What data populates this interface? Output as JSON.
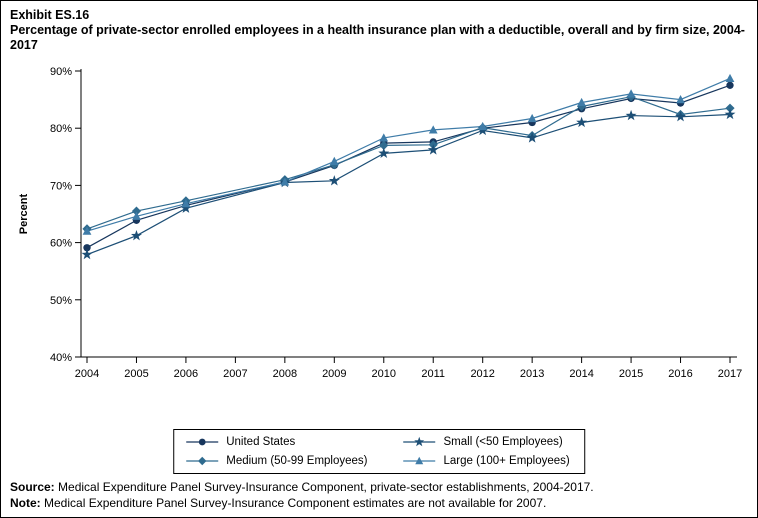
{
  "header": {
    "exhibit": "Exhibit ES.16",
    "title": "Percentage of private-sector enrolled employees in a health insurance plan with a deductible, overall and by firm size, 2004-2017"
  },
  "chart_data": {
    "type": "line",
    "title": "Percentage of private-sector enrolled employees in a health insurance plan with a deductible, overall and by firm size, 2004-2017",
    "xlabel": "",
    "ylabel": "Percent",
    "ylim": [
      40,
      90
    ],
    "grid": false,
    "legend_position": "bottom",
    "missing_year": "2007",
    "yticks": [
      {
        "value": 40,
        "label": "40%"
      },
      {
        "value": 50,
        "label": "50%"
      },
      {
        "value": 60,
        "label": "60%"
      },
      {
        "value": 70,
        "label": "70%"
      },
      {
        "value": 80,
        "label": "80%"
      },
      {
        "value": 90,
        "label": "90%"
      }
    ],
    "categories": [
      "2004",
      "2005",
      "2006",
      "2007",
      "2008",
      "2009",
      "2010",
      "2011",
      "2012",
      "2013",
      "2014",
      "2015",
      "2016",
      "2017"
    ],
    "series": [
      {
        "name": "United States",
        "marker": "circle",
        "color": "#17365d",
        "values": [
          59.1,
          63.9,
          66.5,
          null,
          70.6,
          73.5,
          77.4,
          77.6,
          80.0,
          81.0,
          83.4,
          85.2,
          84.4,
          87.5
        ]
      },
      {
        "name": "Medium (50-99 Employees)",
        "marker": "diamond",
        "color": "#2f6b8f",
        "values": [
          62.4,
          65.5,
          67.3,
          null,
          71.0,
          73.6,
          77.0,
          77.1,
          80.1,
          78.7,
          83.8,
          85.5,
          82.4,
          83.5
        ]
      },
      {
        "name": "Small (<50 Employees)",
        "marker": "star",
        "color": "#1d4f76",
        "values": [
          57.9,
          61.2,
          66.0,
          null,
          70.5,
          70.8,
          75.6,
          76.2,
          79.6,
          78.3,
          81.0,
          82.2,
          82.0,
          82.4
        ]
      },
      {
        "name": "Large (100+ Employees)",
        "marker": "triangle",
        "color": "#3f7ca8",
        "values": [
          62.0,
          64.6,
          66.8,
          null,
          70.6,
          74.2,
          78.3,
          79.7,
          80.3,
          81.7,
          84.5,
          86.0,
          85.0,
          88.7
        ]
      }
    ]
  },
  "footer": {
    "source_label": "Source:",
    "source_text": " Medical Expenditure Panel Survey-Insurance Component, private-sector establishments, 2004-2017.",
    "note_label": "Note:",
    "note_text": " Medical Expenditure Panel Survey-Insurance Component estimates are not available for 2007."
  }
}
